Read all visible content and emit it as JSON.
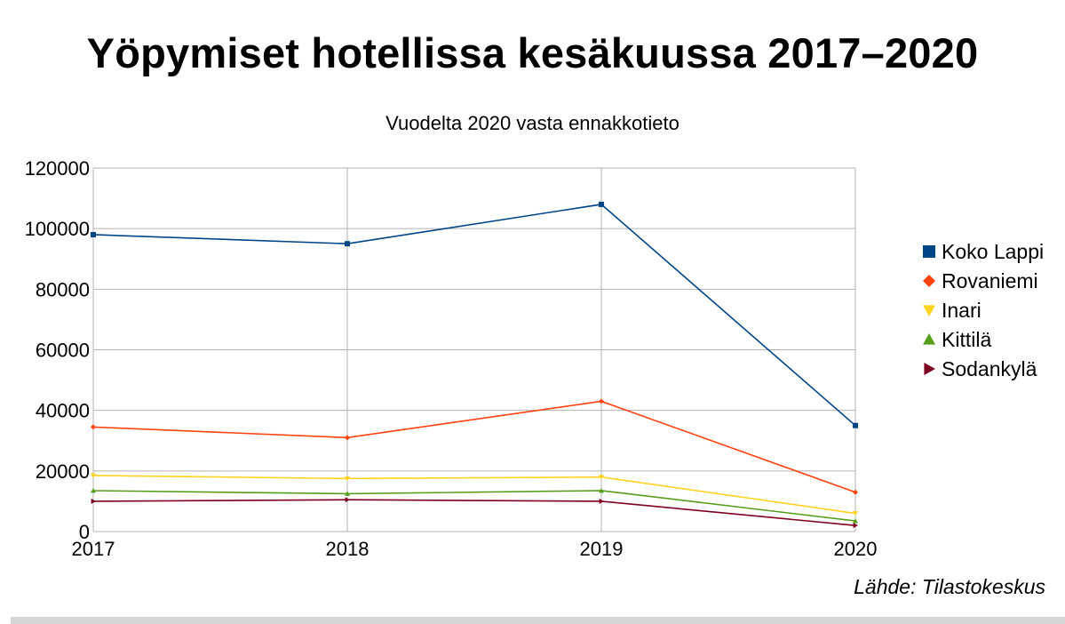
{
  "chart_data": {
    "type": "line",
    "title": "Yöpymiset hotellissa kesäkuussa 2017–2020",
    "subtitle": "Vuodelta 2020 vasta ennakkotieto",
    "source": "Lähde: Tilastokeskus",
    "x": [
      "2017",
      "2018",
      "2019",
      "2020"
    ],
    "ylim": [
      0,
      120000
    ],
    "yticks": [
      "0",
      "20000",
      "40000",
      "60000",
      "80000",
      "100000",
      "120000"
    ],
    "grid": true,
    "legend_position": "right",
    "series": [
      {
        "name": "Koko Lappi",
        "color": "#004586",
        "marker": "square",
        "values": [
          98000,
          95000,
          108000,
          35000
        ]
      },
      {
        "name": "Rovaniemi",
        "color": "#ff420e",
        "marker": "diamond",
        "values": [
          34500,
          31000,
          43000,
          13000
        ]
      },
      {
        "name": "Inari",
        "color": "#ffd320",
        "marker": "triangle-down",
        "values": [
          18500,
          17500,
          18000,
          6000
        ]
      },
      {
        "name": "Kittilä",
        "color": "#579d1c",
        "marker": "triangle-up",
        "values": [
          13500,
          12500,
          13500,
          3500
        ]
      },
      {
        "name": "Sodankylä",
        "color": "#7e0021",
        "marker": "triangle-right",
        "values": [
          10000,
          10500,
          10000,
          2000
        ]
      }
    ]
  }
}
